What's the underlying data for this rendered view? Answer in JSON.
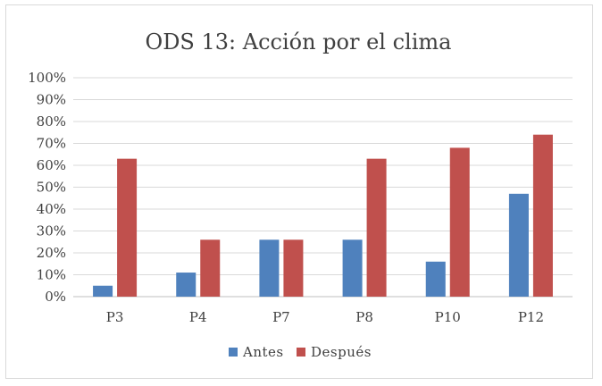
{
  "chart_data": {
    "type": "bar",
    "title": "ODS 13: Acción por el clima",
    "categories": [
      "P3",
      "P4",
      "P7",
      "P8",
      "P10",
      "P12"
    ],
    "series": [
      {
        "name": "Antes",
        "color": "#4f81bd",
        "values": [
          5,
          11,
          26,
          26,
          16,
          47
        ]
      },
      {
        "name": "Después",
        "color": "#c0504d",
        "values": [
          63,
          26,
          26,
          63,
          68,
          74
        ]
      }
    ],
    "y_ticks": [
      "0%",
      "10%",
      "20%",
      "30%",
      "40%",
      "50%",
      "60%",
      "70%",
      "80%",
      "90%",
      "100%"
    ],
    "ylim": [
      0,
      100
    ],
    "xlabel": "",
    "ylabel": "",
    "grid": true,
    "legend": "bottom"
  }
}
